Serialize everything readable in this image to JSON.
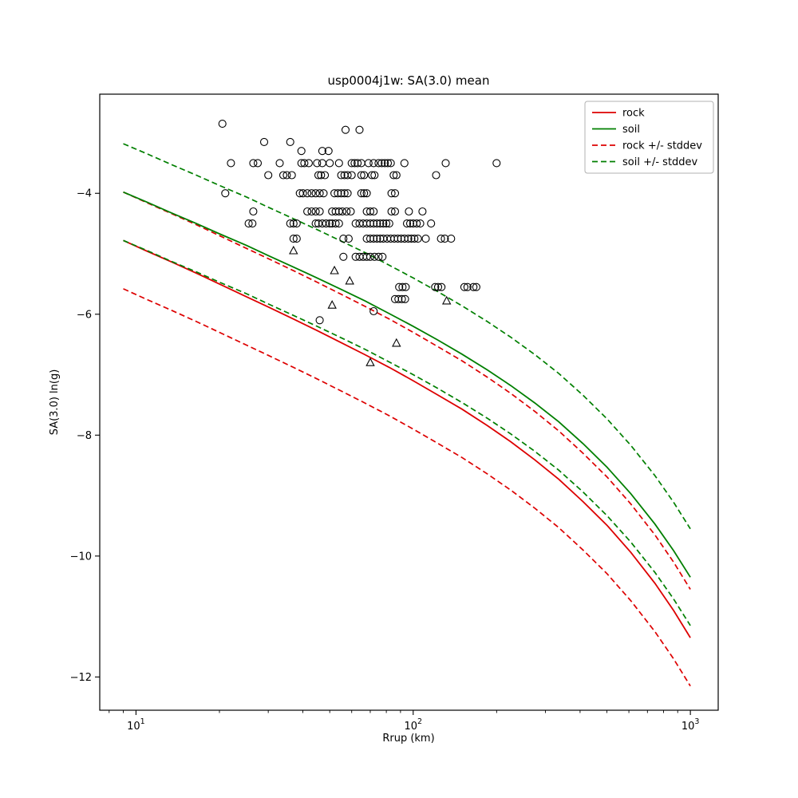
{
  "chart_data": {
    "type": "line",
    "title": "usp0004j1w: SA(3.0) mean",
    "xlabel": "Rrup (km)",
    "ylabel": "SA(3.0) ln(g)",
    "x_scale": "log",
    "grid": false,
    "xlim": [
      7.4,
      1260
    ],
    "ylim": [
      -12.55,
      -2.36
    ],
    "xticks": [
      {
        "value": 10,
        "base": "10",
        "exp": "1"
      },
      {
        "value": 100,
        "base": "10",
        "exp": "2"
      },
      {
        "value": 1000,
        "base": "10",
        "exp": "3"
      }
    ],
    "x_minor_ticks": [
      8,
      9,
      20,
      30,
      40,
      50,
      60,
      70,
      80,
      90,
      200,
      300,
      400,
      500,
      600,
      700,
      800,
      900
    ],
    "yticks": [
      -4,
      -6,
      -8,
      -10,
      -12
    ],
    "colors": {
      "rock": "#dd0000",
      "soil": "#007f00",
      "data": "#000000"
    },
    "legend": {
      "position": "upper right",
      "entries": [
        {
          "label": "rock",
          "color": "#dd0000",
          "dash": false
        },
        {
          "label": "soil",
          "color": "#007f00",
          "dash": false
        },
        {
          "label": "rock +/- stddev",
          "color": "#dd0000",
          "dash": true
        },
        {
          "label": "soil +/- stddev",
          "color": "#007f00",
          "dash": true
        }
      ]
    },
    "series": [
      {
        "name": "rock",
        "color": "#dd0000",
        "style": "solid",
        "stddev": 0.8,
        "x": [
          9,
          11,
          13.5,
          16.5,
          20,
          25,
          30,
          37,
          45,
          55,
          67,
          82,
          100,
          122,
          150,
          185,
          225,
          275,
          335,
          410,
          500,
          610,
          745,
          870,
          1000
        ],
        "y": [
          -4.78,
          -4.96,
          -5.14,
          -5.32,
          -5.5,
          -5.71,
          -5.88,
          -6.08,
          -6.27,
          -6.47,
          -6.67,
          -6.88,
          -7.1,
          -7.33,
          -7.57,
          -7.84,
          -8.11,
          -8.41,
          -8.73,
          -9.1,
          -9.49,
          -9.94,
          -10.45,
          -10.9,
          -11.35
        ]
      },
      {
        "name": "soil",
        "color": "#007f00",
        "style": "solid",
        "stddev": 0.8,
        "x": [
          9,
          11,
          13.5,
          16.5,
          20,
          25,
          30,
          37,
          45,
          55,
          67,
          82,
          100,
          122,
          150,
          185,
          225,
          275,
          335,
          410,
          500,
          610,
          745,
          870,
          1000
        ],
        "y": [
          -3.98,
          -4.15,
          -4.33,
          -4.5,
          -4.67,
          -4.86,
          -5.03,
          -5.22,
          -5.4,
          -5.59,
          -5.78,
          -5.99,
          -6.2,
          -6.42,
          -6.66,
          -6.92,
          -7.18,
          -7.47,
          -7.78,
          -8.14,
          -8.53,
          -8.97,
          -9.47,
          -9.91,
          -10.35
        ]
      }
    ],
    "scatter": {
      "marker_circle": "recorded station (circle)",
      "marker_triangle": "recorded station (triangle)",
      "circle_rows": [
        {
          "y": -2.85,
          "R": [
            20.5
          ]
        },
        {
          "y": -2.95,
          "R": [
            57,
            64
          ]
        },
        {
          "y": -3.15,
          "R": [
            29,
            36
          ]
        },
        {
          "y": -3.3,
          "R": [
            39.5,
            47,
            49.5
          ]
        },
        {
          "y": -3.5,
          "R": [
            22,
            26.5,
            27.5,
            33,
            39.5,
            40.5,
            42,
            45,
            47,
            50,
            54,
            60,
            61.5,
            63,
            65,
            69,
            72,
            75,
            77,
            79,
            81,
            83,
            93,
            131,
            200
          ]
        },
        {
          "y": -3.7,
          "R": [
            30,
            34,
            35,
            36.5,
            45.5,
            46.5,
            48,
            55,
            56.5,
            58,
            60,
            65,
            66.5,
            71,
            72.5,
            85,
            87,
            121
          ]
        },
        {
          "y": -4.0,
          "R": [
            21,
            39,
            40,
            41.5,
            43,
            44.5,
            46,
            47.5,
            52,
            53.5,
            55,
            56.5,
            58,
            65,
            66.5,
            68,
            83.5,
            86
          ]
        },
        {
          "y": -4.3,
          "R": [
            26.5,
            41.5,
            43,
            44.5,
            46,
            51,
            52.5,
            54,
            55.5,
            57.5,
            59.5,
            68,
            70,
            72,
            83.5,
            86,
            96.5,
            108
          ]
        },
        {
          "y": -4.5,
          "R": [
            25.5,
            26.3,
            36,
            37,
            38,
            44.5,
            45.5,
            47,
            48.5,
            50,
            51,
            52.5,
            54,
            62,
            64,
            66,
            68,
            70,
            72,
            74,
            76,
            78,
            80,
            82,
            95,
            97.5,
            100,
            103,
            106,
            116
          ]
        },
        {
          "y": -4.75,
          "R": [
            37,
            38,
            56,
            58.5,
            68,
            70,
            72,
            74,
            76,
            78,
            80.5,
            83,
            85.5,
            88,
            90.5,
            93,
            96,
            98.5,
            101,
            104,
            111,
            126,
            130,
            137
          ]
        },
        {
          "y": -5.05,
          "R": [
            56,
            62,
            64,
            66,
            68,
            70,
            72.5,
            75,
            77.5
          ]
        },
        {
          "y": -5.55,
          "R": [
            89,
            91.5,
            94,
            120,
            123,
            126.5,
            153,
            157,
            165,
            169
          ]
        },
        {
          "y": -5.75,
          "R": [
            86,
            88.5,
            91,
            93.5
          ]
        },
        {
          "y": -5.95,
          "R": [
            72
          ]
        },
        {
          "y": -6.1,
          "R": [
            46
          ]
        }
      ],
      "triangles": [
        [
          37,
          -4.95
        ],
        [
          52,
          -5.28
        ],
        [
          51,
          -5.85
        ],
        [
          59,
          -5.45
        ],
        [
          87,
          -6.48
        ],
        [
          70,
          -6.8
        ],
        [
          132,
          -5.78
        ]
      ]
    }
  }
}
